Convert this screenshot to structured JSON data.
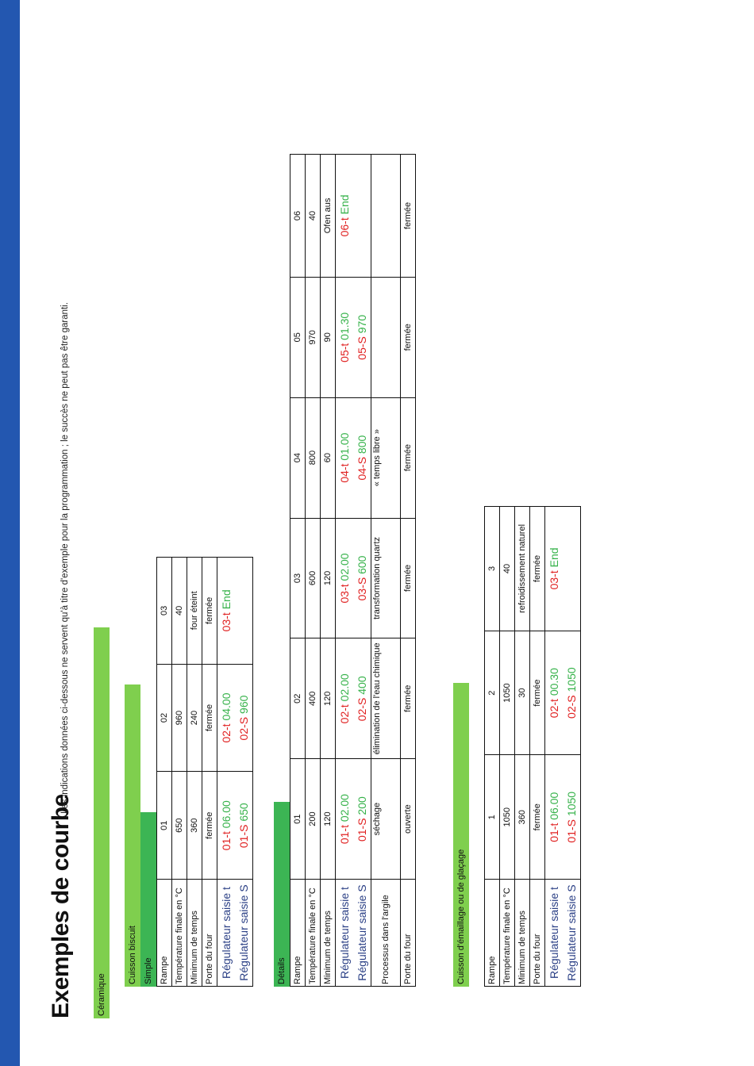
{
  "title": "Exemples de courbe",
  "note": "Les indications données ci-dessous ne servent qu'à titre d'exemple pour la programmation ; le succès ne peut pas être garanti.",
  "section": "Céramique",
  "biscuit": {
    "label": "Cuisson biscuit",
    "simple": {
      "label": "Simple",
      "rows": [
        {
          "label": "Rampe",
          "values": [
            "01",
            "02",
            "03"
          ]
        },
        {
          "label": "Température finale en °C",
          "values": [
            "650",
            "960",
            "40"
          ]
        },
        {
          "label": "Minimum de temps",
          "values": [
            "360",
            "240",
            "four éteint"
          ]
        },
        {
          "label": "Porte du four",
          "values": [
            "fermée",
            "fermée",
            "fermée"
          ]
        }
      ],
      "reg_t_label": "Régulateur saisie t",
      "reg_s_label": "Régulateur saisie S",
      "reg_t": [
        [
          "01-t",
          "06.00"
        ],
        [
          "02-t",
          "04.00"
        ],
        [
          "03-t",
          "End"
        ]
      ],
      "reg_s": [
        [
          "01-S",
          "650"
        ],
        [
          "02-S",
          "960"
        ],
        [
          "",
          ""
        ]
      ]
    },
    "details": {
      "label": "Détails",
      "rows": [
        {
          "label": "Rampe",
          "values": [
            "01",
            "02",
            "03",
            "04",
            "05",
            "06"
          ]
        },
        {
          "label": "Température finale en °C",
          "values": [
            "200",
            "400",
            "600",
            "800",
            "970",
            "40"
          ]
        },
        {
          "label": "Minimum de temps",
          "values": [
            "120",
            "120",
            "120",
            "60",
            "90",
            "Ofen aus"
          ]
        }
      ],
      "reg_t_label": "Régulateur saisie t",
      "reg_s_label": "Régulateur saisie S",
      "reg_t": [
        [
          "01-t",
          "02.00"
        ],
        [
          "02-t",
          "02.00"
        ],
        [
          "03-t",
          "02.00"
        ],
        [
          "04-t",
          "01.00"
        ],
        [
          "05-t",
          "01.30"
        ],
        [
          "06-t",
          "End"
        ]
      ],
      "reg_s": [
        [
          "01-S",
          "200"
        ],
        [
          "02-S",
          "400"
        ],
        [
          "03-S",
          "600"
        ],
        [
          "04-S",
          "800"
        ],
        [
          "05-S",
          "970"
        ],
        [
          "",
          ""
        ]
      ],
      "process_label": "Processus dans l'argile",
      "process": [
        "séchage",
        "élimination de l'eau chimique",
        "transformation quartz",
        "« temps libre »",
        "",
        ""
      ],
      "door_label": "Porte du four",
      "door": [
        "ouverte",
        "fermée",
        "fermée",
        "fermée",
        "fermée",
        "fermée"
      ]
    }
  },
  "glaze": {
    "label": "Cuisson d'émaillage ou de glaçage",
    "rows": [
      {
        "label": "Rampe",
        "values": [
          "1",
          "2",
          "3"
        ]
      },
      {
        "label": "Température finale en °C",
        "values": [
          "1050",
          "1050",
          "40"
        ]
      },
      {
        "label": "Minimum de temps",
        "values": [
          "360",
          "30",
          "refroidissement naturel"
        ]
      },
      {
        "label": "Porte du four",
        "values": [
          "fermée",
          "fermée",
          "fermée"
        ]
      }
    ],
    "reg_t_label": "Régulateur saisie t",
    "reg_s_label": "Régulateur saisie S",
    "reg_t": [
      [
        "01-t",
        "06.00"
      ],
      [
        "02-t",
        "00.30"
      ],
      [
        "03-t",
        "End"
      ]
    ],
    "reg_s": [
      [
        "01-S",
        "1050"
      ],
      [
        "02-S",
        "1050"
      ],
      [
        "",
        ""
      ]
    ]
  }
}
